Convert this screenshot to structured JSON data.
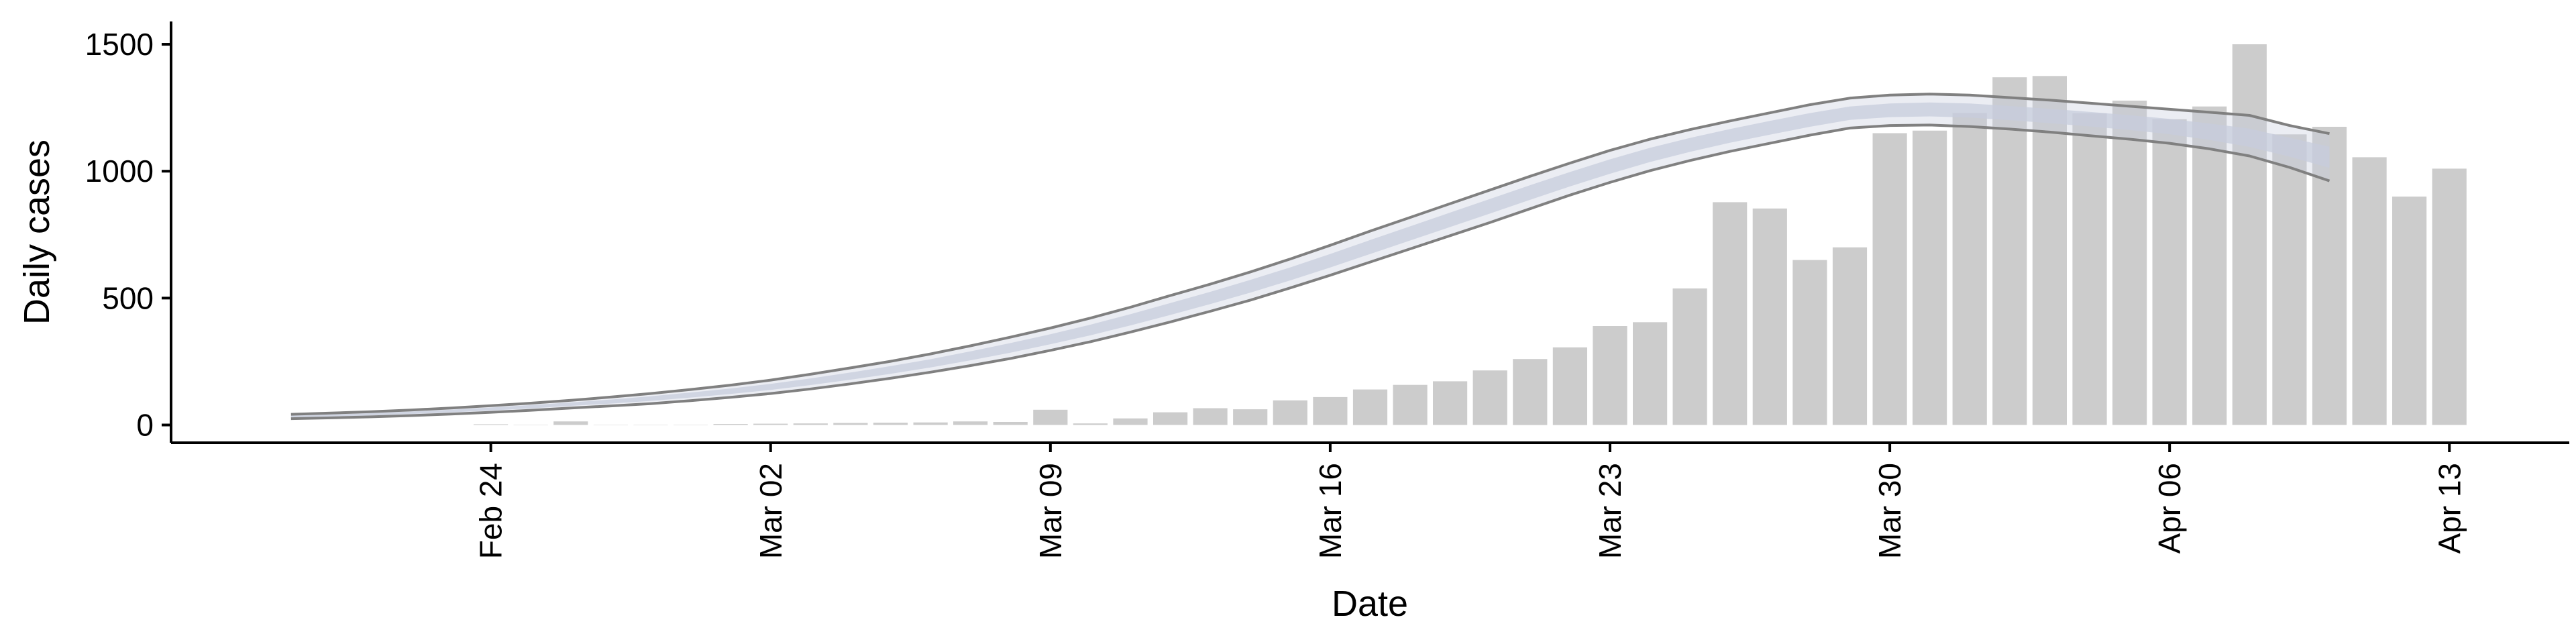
{
  "chart_data": {
    "type": "bar",
    "xlabel": "Date",
    "ylabel": "Daily cases",
    "ylim": [
      -70,
      1590
    ],
    "xlim": [
      "2020-02-16",
      "2020-04-16"
    ],
    "grid": false,
    "bar_color": "#cccccc",
    "x_ticks": [
      {
        "date": "2020-02-24",
        "label": "Feb 24"
      },
      {
        "date": "2020-03-02",
        "label": "Mar 02"
      },
      {
        "date": "2020-03-09",
        "label": "Mar 09"
      },
      {
        "date": "2020-03-16",
        "label": "Mar 16"
      },
      {
        "date": "2020-03-23",
        "label": "Mar 23"
      },
      {
        "date": "2020-03-30",
        "label": "Mar 30"
      },
      {
        "date": "2020-04-06",
        "label": "Apr 06"
      },
      {
        "date": "2020-04-13",
        "label": "Apr 13"
      }
    ],
    "y_ticks": [
      {
        "value": 0,
        "label": "0"
      },
      {
        "value": 500,
        "label": "500"
      },
      {
        "value": 1000,
        "label": "1000"
      },
      {
        "value": 1500,
        "label": "1500"
      }
    ],
    "bars": {
      "start_date": "2020-02-24",
      "values": [
        3,
        0,
        14,
        0,
        0,
        0,
        4,
        5,
        6,
        8,
        9,
        10,
        14,
        12,
        60,
        6,
        26,
        50,
        66,
        62,
        97,
        110,
        140,
        158,
        172,
        215,
        260,
        306,
        390,
        405,
        538,
        878,
        853,
        650,
        700,
        1150,
        1160,
        1230,
        1370,
        1375,
        1228,
        1278,
        1205,
        1255,
        1500,
        1145,
        1175,
        1055,
        900,
        1010
      ]
    },
    "model": {
      "start_date": "2020-02-19",
      "line_color": "#808080",
      "band_color": "#c7ccdc",
      "median": [
        33,
        37,
        42,
        48,
        55,
        63,
        72,
        82,
        92,
        104,
        118,
        133,
        150,
        170,
        192,
        216,
        242,
        272,
        304,
        338,
        374,
        414,
        456,
        500,
        546,
        594,
        646,
        700,
        754,
        808,
        862,
        916,
        968,
        1018,
        1064,
        1104,
        1140,
        1172,
        1202,
        1228,
        1240,
        1244,
        1240,
        1230,
        1218,
        1206,
        1192,
        1175,
        1152,
        1125,
        1092,
        1055
      ],
      "upper": [
        42,
        47,
        52,
        59,
        67,
        76,
        86,
        97,
        110,
        124,
        140,
        157,
        177,
        200,
        225,
        251,
        280,
        312,
        346,
        382,
        421,
        464,
        510,
        555,
        603,
        654,
        708,
        764,
        818,
        872,
        926,
        980,
        1032,
        1082,
        1126,
        1164,
        1198,
        1230,
        1262,
        1288,
        1300,
        1304,
        1300,
        1290,
        1280,
        1268,
        1256,
        1244,
        1232,
        1220,
        1180,
        1148
      ],
      "lower": [
        25,
        28,
        32,
        37,
        43,
        50,
        58,
        67,
        75,
        84,
        96,
        109,
        124,
        142,
        162,
        184,
        208,
        234,
        262,
        294,
        328,
        366,
        406,
        448,
        492,
        540,
        590,
        642,
        694,
        746,
        798,
        852,
        906,
        956,
        1002,
        1042,
        1078,
        1110,
        1142,
        1170,
        1180,
        1182,
        1176,
        1166,
        1154,
        1140,
        1126,
        1110,
        1088,
        1060,
        1015,
        962
      ]
    }
  }
}
